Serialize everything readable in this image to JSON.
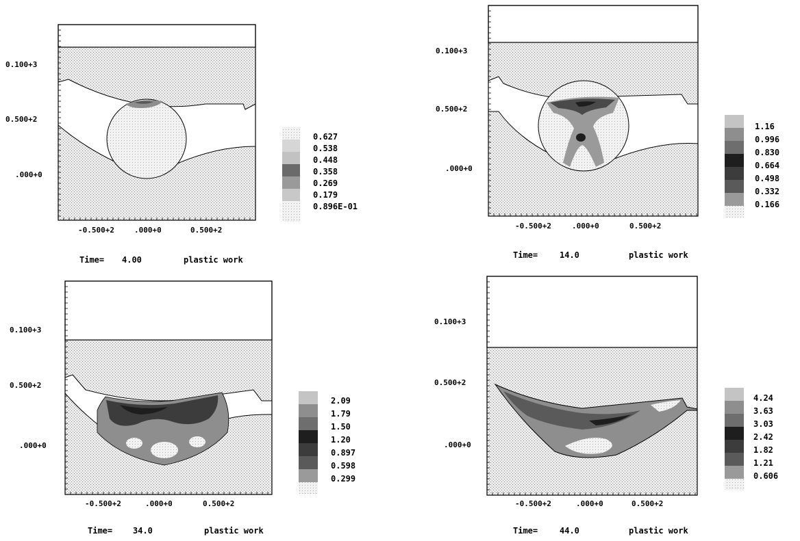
{
  "panels": [
    {
      "id": "p1",
      "y_ticks": [
        "0.100+3",
        "0.500+2",
        ".000+0"
      ],
      "x_ticks": [
        "-0.500+2",
        ".000+0",
        "0.500+2"
      ],
      "time_label": "Time=",
      "time_value": "4.00",
      "field": "plastic work",
      "legend": [
        "0.627",
        "0.538",
        "0.448",
        "0.358",
        "0.269",
        "0.179",
        "0.896E-01"
      ]
    },
    {
      "id": "p2",
      "y_ticks": [
        "0.100+3",
        "0.500+2",
        ".000+0"
      ],
      "x_ticks": [
        "-0.500+2",
        ".000+0",
        "0.500+2"
      ],
      "time_label": "Time=",
      "time_value": "14.0",
      "field": "plastic work",
      "legend": [
        "1.16",
        "0.996",
        "0.830",
        "0.664",
        "0.498",
        "0.332",
        "0.166"
      ]
    },
    {
      "id": "p3",
      "y_ticks": [
        "0.100+3",
        "0.500+2",
        ".000+0"
      ],
      "x_ticks": [
        "-0.500+2",
        ".000+0",
        "0.500+2"
      ],
      "time_label": "Time=",
      "time_value": "34.0",
      "field": "plastic work",
      "legend": [
        "2.09",
        "1.79",
        "1.50",
        "1.20",
        "0.897",
        "0.598",
        "0.299"
      ]
    },
    {
      "id": "p4",
      "y_ticks": [
        "0.100+3",
        "0.500+2",
        ".000+0"
      ],
      "x_ticks": [
        "-0.500+2",
        ".000+0",
        "0.500+2"
      ],
      "time_label": "Time=",
      "time_value": "44.0",
      "field": "plastic work",
      "legend": [
        "4.24",
        "3.63",
        "3.03",
        "2.42",
        "1.82",
        "1.21",
        "0.606"
      ]
    }
  ],
  "colors": {
    "stipple": "#dcdcdc",
    "legend_shades": [
      "#c4c4c4",
      "#8e8e8e",
      "#6e6e6e",
      "#1e1e1e",
      "#3c3c3c",
      "#5a5a5a",
      "#9a9a9a"
    ],
    "legend_bottom": "#ececec"
  }
}
